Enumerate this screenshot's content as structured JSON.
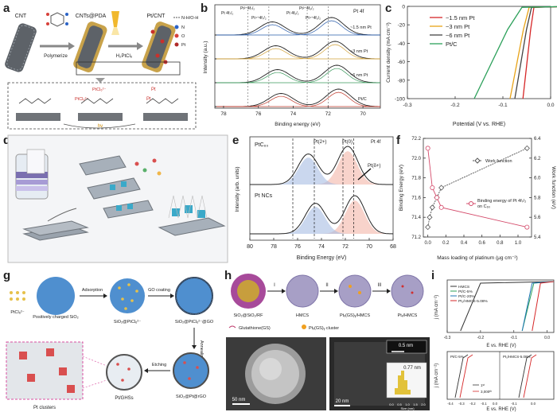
{
  "panel_letters": [
    "a",
    "b",
    "c",
    "d",
    "e",
    "f",
    "g",
    "h",
    "i"
  ],
  "panel_a": {
    "labels": [
      "CNT",
      "CNTs@PDA",
      "Pt/CNT"
    ],
    "steps": [
      "Polymerize",
      "H₂PtCl₆"
    ],
    "legend": [
      "N-H/O-H",
      "N",
      "O",
      "Pt"
    ],
    "scheme_labels": [
      "PtCl₆²⁻",
      "PtCl₆²⁻",
      "Pt",
      "Pt",
      "hv"
    ]
  },
  "panel_d": {
    "colors": {
      "sheet": "#9aa3ad",
      "cube": "#3aa9c9",
      "dot": "#d94f4f"
    }
  },
  "panel_g": {
    "labels": [
      "PtCl₆²⁻",
      "Positively charged SiO₂",
      "SiO₂@PtCl₆²⁻",
      "SiO₂@PtCl₆²⁻@GO",
      "SiO₂@Pt@rGO",
      "Pt/GHSs",
      "Pt clusters"
    ],
    "steps": [
      "Adsorption",
      "GO coating",
      "Annealing",
      "Etching"
    ]
  },
  "panel_h": {
    "labels": [
      "SiO₂@SiO₂/RF",
      "HMCS",
      "Ptₓ(GS)ᵧ/HMCS",
      "Ptₓ/HMCS"
    ],
    "steps": [
      "I",
      "II",
      "III"
    ],
    "legend": [
      "Glutathione(GS)",
      "Ptₓ(GS)ᵧ cluster"
    ],
    "scalebars": [
      "50 nm",
      "20 nm",
      "0.5 nm"
    ],
    "hist_label": "0.77 nm",
    "hist_xlabel": "Size (nm)",
    "hist_ticks": [
      "0.0",
      "0.5",
      "1.0",
      "1.5",
      "2.0"
    ]
  },
  "chart_data": [
    {
      "panel": "b",
      "type": "line",
      "title": "Pt 4f",
      "xlabel": "Binding energy (eV)",
      "ylabel": "Intensity (a.u.)",
      "xlim": [
        78,
        69
      ],
      "xticks": [
        "70",
        "72",
        "74",
        "76",
        "78"
      ],
      "peak_labels": [
        "Pt 4f₇/₂",
        "Pt²⁺4f₇/₂",
        "Pt⁴⁺4f₇/₂",
        "Pt 4f₅/₂",
        "Pt²⁺4f₅/₂",
        "Pt⁴⁺4f₅/₂"
      ],
      "series": [
        {
          "name": "~1.5 nm Pt",
          "peaks": [
            71.8,
            75.2
          ]
        },
        {
          "name": "~3 nm Pt",
          "peaks": [
            71.6,
            75.0
          ]
        },
        {
          "name": "~6 nm Pt",
          "peaks": [
            71.5,
            74.9
          ]
        },
        {
          "name": "Pt/C",
          "peaks": [
            71.4,
            74.7
          ]
        }
      ]
    },
    {
      "panel": "c",
      "type": "line",
      "xlabel": "Potential (V vs. RHE)",
      "ylabel": "Current density (mA cm⁻²)",
      "xlim": [
        -0.3,
        0.0
      ],
      "ylim": [
        -100,
        0
      ],
      "xticks": [
        "-0.3",
        "-0.2",
        "-0.1",
        "0.0"
      ],
      "yticks": [
        "0",
        "-20",
        "-40",
        "-60",
        "-80",
        "-100"
      ],
      "series": [
        {
          "name": "~1.5 nm Pt",
          "color": "#d62728",
          "onset": -0.035,
          "x100": -0.058
        },
        {
          "name": "~3 nm Pt",
          "color": "#e8a317",
          "onset": -0.045,
          "x100": -0.085
        },
        {
          "name": "~6 nm Pt",
          "color": "#444444",
          "onset": -0.04,
          "x100": -0.075
        },
        {
          "name": "Pt/C",
          "color": "#2ca05a",
          "onset": -0.06,
          "x100": -0.16
        }
      ]
    },
    {
      "panel": "e",
      "type": "line",
      "xlabel": "Binding Energy (eV)",
      "ylabel": "Intensity (arb. units)",
      "xlim": [
        80,
        68
      ],
      "xticks": [
        "80",
        "78",
        "76",
        "74",
        "72",
        "70",
        "68"
      ],
      "labels": [
        "PtC₆₀",
        "Pt NCs",
        "Pt(2+)",
        "Pt(0)",
        "Pt 4f",
        "Pt(δ+)"
      ],
      "series": [
        {
          "name": "PtC₆₀",
          "peaks": [
            71.8,
            75.1
          ]
        },
        {
          "name": "Pt NCs",
          "peaks": [
            71.2,
            74.5
          ]
        }
      ]
    },
    {
      "panel": "f",
      "type": "line",
      "xlabel": "Mass loading of platinum (μg cm⁻²)",
      "ylabel": "Binding Energy (eV)",
      "y2label": "Work function (eV)",
      "xlim": [
        0,
        1.1
      ],
      "ylim": [
        71.2,
        72.2
      ],
      "y2lim": [
        5.4,
        6.4
      ],
      "xticks": [
        "0.0",
        "0.2",
        "0.4",
        "0.6",
        "0.8",
        "1.0"
      ],
      "yticks": [
        "71.2",
        "71.4",
        "71.6",
        "71.8",
        "72.0",
        "72.2"
      ],
      "y2ticks": [
        "5.4",
        "5.6",
        "5.8",
        "6.0",
        "6.2",
        "6.4"
      ],
      "series": [
        {
          "name": "Work function",
          "x": [
            0.0,
            0.02,
            0.05,
            0.1,
            0.15,
            1.1
          ],
          "y": [
            5.5,
            5.6,
            5.7,
            5.8,
            5.9,
            6.3
          ]
        },
        {
          "name": "Binding energy of Pt 4f₇/₂ on C₆₀",
          "x": [
            0.0,
            0.05,
            0.1,
            0.15,
            1.1
          ],
          "y": [
            72.1,
            71.7,
            71.6,
            71.5,
            71.3
          ]
        }
      ]
    },
    {
      "panel": "i",
      "type": "line",
      "xlabel": "E vs. RHE (V)",
      "ylabel": "j (mA cm⁻²)",
      "xticks": [
        "-0.3",
        "-0.2",
        "-0.1",
        "0.0"
      ],
      "series": [
        {
          "name": "HMCS",
          "color": "#333333"
        },
        {
          "name": "Pt/C-5%",
          "color": "#2ca05a"
        },
        {
          "name": "Pt/C-20%",
          "color": "#1f77b4"
        },
        {
          "name": "Pt₁/HMCS-5.08%",
          "color": "#d62728"
        }
      ],
      "lower": {
        "labels": [
          "Pt/C-5%",
          "Pt₁/HMCS-5.08%"
        ],
        "legend": [
          "1ˢᵗ",
          "3,000ᵗʰ"
        ],
        "xticks": [
          "-0.4",
          "-0.3",
          "-0.2",
          "-0.1",
          "0.0",
          "-0.1",
          "0.0"
        ]
      }
    }
  ]
}
